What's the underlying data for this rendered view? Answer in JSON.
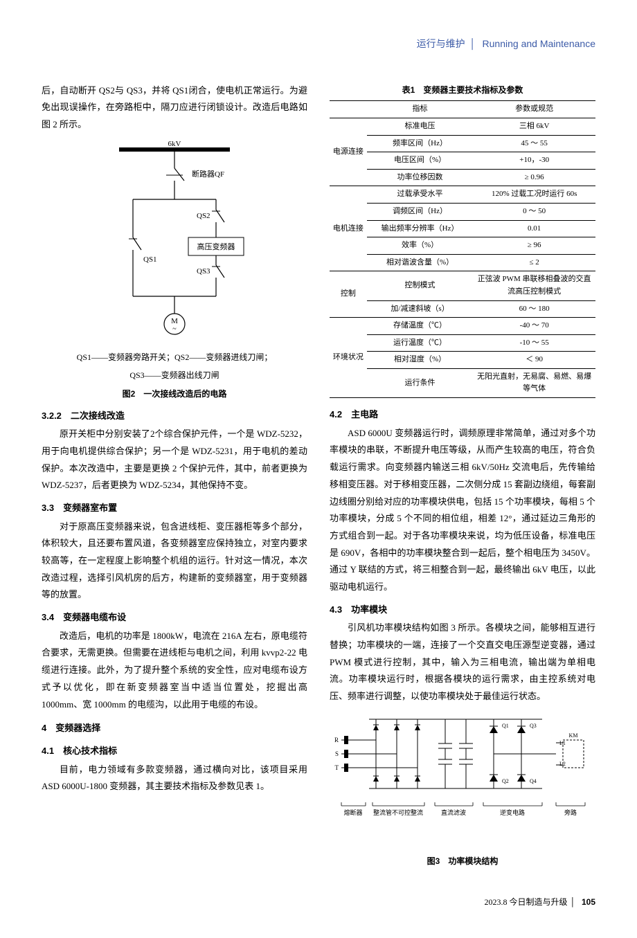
{
  "header": {
    "cn": "运行与维护",
    "en": "Running and Maintenance"
  },
  "left": {
    "intro": "后，自动断开 QS2与 QS3，并将 QS1闭合，使电机正常运行。为避免出现误操作，在旁路柜中，隔刀应进行闭锁设计。改造后电路如图 2 所示。",
    "fig2": {
      "voltage_label": "6kV",
      "qf": "断路器QF",
      "qs1": "QS1",
      "qs2": "QS2",
      "qs3": "QS3",
      "vfd_box": "高压变频器",
      "motor": "M",
      "sublabel_line1": "QS1——变频器旁路开关；QS2——变频器进线刀闸；",
      "sublabel_line2": "QS3——变频器出线刀闸",
      "caption": "图2　一次接线改造后的电路"
    },
    "s322_title": "3.2.2　二次接线改造",
    "s322_body": "原开关柜中分别安装了2个综合保护元件，一个是 WDZ-5232，用于向电机提供综合保护；另一个是 WDZ-5231，用于电机的差动保护。本次改造中，主要是更换 2 个保护元件，其中，前者更换为 WDZ-5237，后者更换为 WDZ-5234，其他保持不变。",
    "s33_title": "3.3　变频器室布置",
    "s33_body": "对于原高压变频器来说，包含进线柜、变压器柜等多个部分，体积较大，且还要布置风道，各变频器室应保持独立，对室内要求较高等，在一定程度上影响整个机组的运行。针对这一情况，本次改造过程，选择引风机房的后方，构建新的变频器室，用于变频器等的放置。",
    "s34_title": "3.4　变频器电缆布设",
    "s34_body": "改造后，电机的功率是 1800kW，电流在 216A 左右，原电缆符合要求，无需更换。但需要在进线柜与电机之间，利用 kvvp2-22 电缆进行连接。此外，为了提升整个系统的安全性，应对电缆布设方式予以优化，即在新变频器室当中适当位置处，挖掘出高 1000mm、宽 1000mm 的电缆沟，以此用于电缆的布设。",
    "s4_title": "4　变频器选择",
    "s41_title": "4.1　核心技术指标",
    "s41_body": "目前，电力领域有多款变频器，通过横向对比，该项目采用 ASD 6000U-1800 变频器，其主要技术指标及参数见表 1。"
  },
  "right": {
    "table1": {
      "title": "表1　变频器主要技术指标及参数",
      "head_label": "指标",
      "head_value": "参数或规范",
      "groups": [
        {
          "group": "电源连接",
          "rows": [
            {
              "label": "标准电压",
              "value": "三相 6kV"
            },
            {
              "label": "频率区间（Hz）",
              "value": "45 ～ 55"
            },
            {
              "label": "电压区间（%）",
              "value": "+10，-30"
            },
            {
              "label": "功率位移因数",
              "value": "≥ 0.96"
            }
          ]
        },
        {
          "group": "电机连接",
          "rows": [
            {
              "label": "过载承受水平",
              "value": "120% 过载工况时运行 60s"
            },
            {
              "label": "调频区间（Hz）",
              "value": "0 ～ 50"
            },
            {
              "label": "输出频率分辨率（Hz）",
              "value": "0.01"
            },
            {
              "label": "效率（%）",
              "value": "≥ 96"
            },
            {
              "label": "相对谐波含量（%）",
              "value": "≤ 2"
            }
          ]
        },
        {
          "group": "控制",
          "rows": [
            {
              "label": "控制模式",
              "value": "正弦波 PWM 串联移相叠波的交直流高压控制模式"
            },
            {
              "label": "加/减速斜坡（s）",
              "value": "60 ～ 180"
            }
          ]
        },
        {
          "group": "环境状况",
          "rows": [
            {
              "label": "存储温度（℃）",
              "value": "-40 ～ 70"
            },
            {
              "label": "运行温度（℃）",
              "value": "-10 ～ 55"
            },
            {
              "label": "相对湿度（%）",
              "value": "＜ 90"
            },
            {
              "label": "运行条件",
              "value": "无阳光直射，无易腐、易燃、易爆等气体"
            }
          ]
        }
      ]
    },
    "s42_title": "4.2　主电路",
    "s42_body": "ASD 6000U 变频器运行时，调频原理非常简单，通过对多个功率模块的串联，不断提升电压等级，从而产生较高的电压，符合负载运行需求。向变频器内输送三相 6kV/50Hz 交流电后，先传输给移相变压器。对于移相变压器，二次侧分成 15 套副边绕组，每套副边线圈分别给对应的功率模块供电，包括 15 个功率模块，每相 5 个功率模块，分成 5 个不同的相位组，相差 12°，通过延边三角形的方式组合到一起。对于各功率模块来说，均为低压设备，标准电压是 690V，各相中的功率模块整合到一起后，整个相电压为 3450V。通过 Y 联结的方式，将三相整合到一起，最终输出 6kV 电压，以此驱动电机运行。",
    "s43_title": "4.3　功率模块",
    "s43_body": "引风机功率模块结构如图 3 所示。各模块之间，能够相互进行替换；功率模块的一端，连接了一个交直交电压源型逆变器，通过 PWM 模式进行控制，其中，输入为三相电流，输出端为单相电流。功率模块运行时，根据各模块的运行需求，由主控系统对电压、频率进行调整，以使功率模块处于最佳运行状态。",
    "fig3": {
      "caption": "图3　功率模块结构",
      "labels": {
        "R": "R",
        "S": "S",
        "T": "T",
        "Q1": "Q1",
        "Q2": "Q2",
        "Q3": "Q3",
        "Q4": "Q4",
        "L1": "L1",
        "L2": "L2",
        "KM": "KM",
        "fuse": "熔断器",
        "rect": "整流管不可控整流",
        "dc": "直流滤波",
        "inv": "逆变电路",
        "bypass": "旁路"
      }
    }
  },
  "footer": {
    "date": "2023.8",
    "mag": "今日制造与升级",
    "page": "105"
  },
  "colors": {
    "header_blue": "#3b5aa7",
    "text": "#000000",
    "watermark": "#dbe6f3"
  }
}
